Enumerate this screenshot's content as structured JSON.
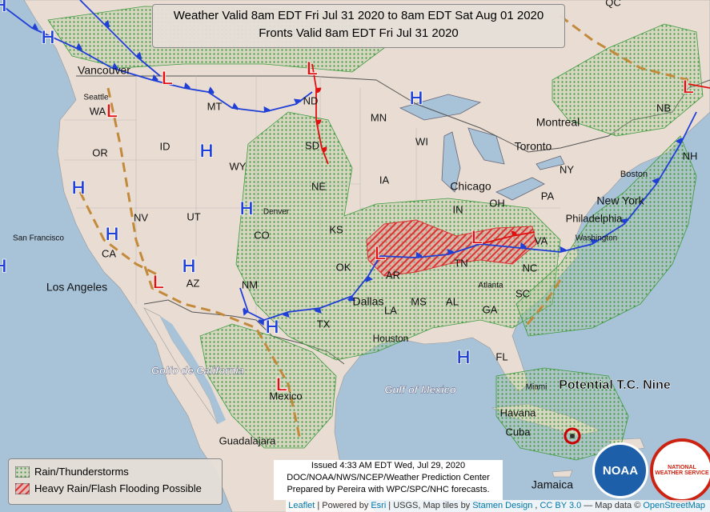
{
  "title": {
    "line1": "Weather Valid 8am EDT Fri Jul 31 2020 to 8am EDT Sat Aug 01 2020",
    "line2": "Fronts Valid 8am EDT Fri Jul 31 2020"
  },
  "legend": [
    "Rain/Thunderstorms",
    "Heavy Rain/Flash Flooding Possible"
  ],
  "issued": [
    "Issued 4:33 AM EDT Wed, Jul 29, 2020",
    "DOC/NOAA/NWS/NCEP/Weather Prediction Center",
    "Prepared by Pereira with WPC/SPC/NHC forecasts."
  ],
  "attribution": [
    "Leaflet",
    "| Powered by",
    "Esri",
    "| USGS, Map tiles by",
    "Stamen Design",
    ",",
    "CC BY 3.0",
    "— Map data ©",
    "OpenStreetMap"
  ],
  "annotation": "Potential T.C. Nine",
  "logos": [
    "NOAA",
    "NATIONAL WEATHER SERVICE"
  ],
  "pressure_centers": [
    "H",
    "H",
    "H",
    "H",
    "H",
    "H",
    "H",
    "H",
    "H",
    "H",
    "H",
    "L",
    "L",
    "L",
    "L",
    "L",
    "L",
    "L",
    "L"
  ],
  "places": [
    "Vancouver",
    "Seattle",
    "WA",
    "OR",
    "ID",
    "MT",
    "WY",
    "ND",
    "SD",
    "NE",
    "MN",
    "IA",
    "WI",
    "Chicago",
    "Toronto",
    "Montreal",
    "QC",
    "NB",
    "NH",
    "Boston",
    "NY",
    "New York",
    "Philadelphia",
    "PA",
    "OH",
    "IN",
    "Washington",
    "VA",
    "NC",
    "SC",
    "GA",
    "AL",
    "MS",
    "LA",
    "AR",
    "TN",
    "Atlanta",
    "Dallas",
    "Houston",
    "TX",
    "OK",
    "KS",
    "CO",
    "Denver",
    "UT",
    "NV",
    "CA",
    "San Francisco",
    "Los Angeles",
    "AZ",
    "NM",
    "FL",
    "Miami",
    "Havana",
    "Cuba",
    "Jamaica",
    "Mexico",
    "Guadalajara",
    "Golfo de California",
    "Gulf of Mexico"
  ]
}
